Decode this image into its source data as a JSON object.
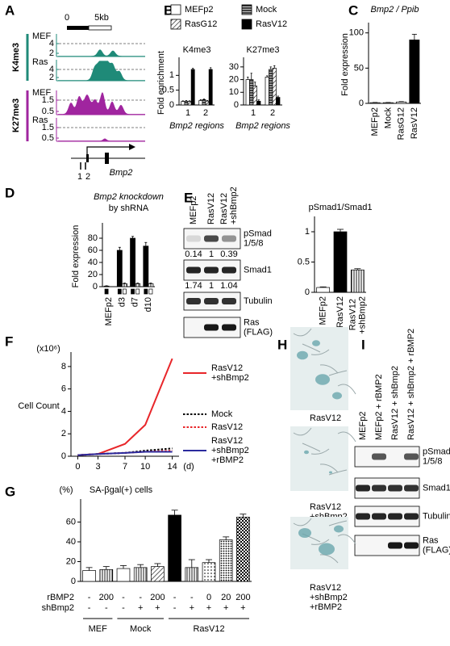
{
  "panels": [
    "A",
    "B",
    "C",
    "D",
    "E",
    "F",
    "G",
    "H",
    "I"
  ],
  "panel_a": {
    "scale": [
      "0",
      "5kb"
    ],
    "marks": [
      "K4me3",
      "K27me3"
    ],
    "tracks": [
      {
        "name": "MEF",
        "ticks": [
          4,
          2
        ]
      },
      {
        "name": "Ras",
        "ticks": [
          4,
          2
        ]
      },
      {
        "name": "MEF",
        "ticks": [
          1.5,
          0.5
        ]
      },
      {
        "name": "Ras",
        "ticks": [
          1.5,
          0.5
        ]
      }
    ],
    "regions": [
      "1",
      "2"
    ],
    "gene": "Bmp2"
  },
  "chart_data": [
    {
      "type": "bar",
      "title": "K4me3",
      "y_label": "Fold enrichment",
      "x_label": "Bmp2 regions",
      "categories": [
        "1",
        "2"
      ],
      "series": [
        {
          "name": "MEFp2",
          "color": "#ffffff",
          "pattern": "plain",
          "values": [
            0.12,
            0.15
          ],
          "errors": [
            0.02,
            0.03
          ]
        },
        {
          "name": "Mock",
          "color": "#555555",
          "pattern": "hstripe",
          "values": [
            0.13,
            0.18
          ],
          "errors": [
            0.02,
            0.02
          ]
        },
        {
          "name": "RasG12",
          "color": "#ffffff",
          "pattern": "hatch",
          "values": [
            0.12,
            0.13
          ],
          "errors": [
            0.02,
            0.02
          ]
        },
        {
          "name": "RasV12",
          "color": "#000000",
          "pattern": "plain",
          "values": [
            1.2,
            1.2
          ],
          "errors": [
            0.04,
            0.06
          ]
        }
      ],
      "ylim": [
        0,
        1.5
      ],
      "yticks": [
        0,
        0.5,
        1
      ]
    },
    {
      "type": "bar",
      "title": "K27me3",
      "x_label": "Bmp2 regions",
      "categories": [
        "1",
        "2"
      ],
      "series": [
        {
          "color": "#ffffff",
          "pattern": "plain",
          "values": [
            20,
            22
          ],
          "errors": [
            2,
            1
          ]
        },
        {
          "color": "#555555",
          "pattern": "hstripe",
          "values": [
            20,
            28
          ],
          "errors": [
            5,
            2
          ]
        },
        {
          "color": "#ffffff",
          "pattern": "hatch",
          "values": [
            15,
            29
          ],
          "errors": [
            3,
            2
          ]
        },
        {
          "color": "#000000",
          "pattern": "plain",
          "values": [
            3,
            6
          ],
          "errors": [
            1,
            1
          ]
        }
      ],
      "ylim": [
        0,
        35
      ],
      "yticks": [
        0,
        10,
        20,
        30
      ]
    },
    {
      "type": "bar",
      "title": "Bmp2 / Ppib",
      "y_label": "Fold expression",
      "categories": [
        "MEFp2",
        "Mock",
        "RasG12",
        "RasV12"
      ],
      "series": [
        {
          "colors": [
            "#ffffff",
            "#ffffff",
            "#ffffff",
            "#000000"
          ],
          "patterns": [
            "plain",
            "plain",
            "plain",
            "plain"
          ],
          "values": [
            1,
            1,
            2,
            90
          ],
          "errors": [
            0.3,
            0.3,
            0.5,
            8
          ]
        }
      ],
      "ylim": [
        0,
        110
      ],
      "yticks": [
        0,
        50,
        100
      ]
    },
    {
      "type": "bar",
      "title": "Bmp2 knockdown",
      "subtitle": "by shRNA",
      "y_label": "Fold expression",
      "categories": [
        "MEFp2",
        "d3",
        "d7",
        "d10"
      ],
      "series": [
        {
          "color": "#000000",
          "pattern": "plain",
          "values": [
            1,
            60,
            80,
            67
          ],
          "errors": [
            0.5,
            5,
            3,
            6
          ]
        },
        {
          "color": "#ffffff",
          "pattern": "vstripe",
          "values": [
            null,
            5,
            5,
            5
          ],
          "errors": [
            null,
            1,
            1,
            1
          ]
        }
      ],
      "ylim": [
        0,
        100
      ],
      "yticks": [
        0,
        20,
        40,
        60,
        80
      ]
    },
    {
      "type": "bar",
      "title": "pSmad1/Smad1",
      "categories": [
        "MEFp2",
        "RasV12",
        "RasV12 +shBmp2"
      ],
      "series": [
        {
          "colors": [
            "#ffffff",
            "#000000",
            "#ffffff"
          ],
          "patterns": [
            "plain",
            "plain",
            "vstripe"
          ],
          "values": [
            0.08,
            1,
            0.37
          ],
          "errors": [
            0.01,
            0.04,
            0.02
          ]
        }
      ],
      "ylim": [
        0,
        1.2
      ],
      "yticks": [
        0,
        0.5,
        1
      ]
    },
    {
      "type": "line",
      "y_label": "Cell Count",
      "unit": "(x10⁶)",
      "x_label": "(d)",
      "x": [
        0,
        3,
        7,
        10,
        14
      ],
      "series": [
        {
          "name": "RasV12 +shBmp2",
          "color": "#e8262a",
          "dash": "solid",
          "values": [
            0.1,
            0.2,
            1.1,
            2.8,
            8.7
          ]
        },
        {
          "name": "Mock",
          "color": "#000000",
          "dash": "dotted",
          "values": [
            0.1,
            0.2,
            0.3,
            0.5,
            0.7
          ]
        },
        {
          "name": "RasV12",
          "color": "#e8262a",
          "dash": "dotted",
          "values": [
            0.1,
            0.2,
            0.3,
            0.4,
            0.5
          ]
        },
        {
          "name": "RasV12 +shBmp2 +rBMP2",
          "color": "#2b2b9e",
          "dash": "solid",
          "values": [
            0.1,
            0.2,
            0.3,
            0.4,
            0.4
          ]
        }
      ],
      "xlim": [
        -1,
        15
      ],
      "xticks": [
        0,
        3,
        7,
        10,
        14
      ],
      "ylim": [
        0,
        9
      ],
      "yticks": [
        0,
        2,
        4,
        6,
        8
      ]
    },
    {
      "type": "bar",
      "title": "SA-βgal(+) cells",
      "unit": "(%)",
      "series": [
        {
          "colors": [
            "#ffffff",
            "#ffffff",
            "#ffffff",
            "#ffffff",
            "#ffffff",
            "#000000",
            "#ffffff",
            "#ffffff",
            "#ffffff",
            "#ffffff"
          ],
          "patterns": [
            "plain",
            "vstripe",
            "plain",
            "vstripe",
            "hatch",
            "plain",
            "vstripe",
            "dots",
            "dense",
            "checker"
          ],
          "values": [
            11,
            12,
            13,
            14,
            15,
            67,
            14,
            19,
            42,
            65
          ],
          "errors": [
            3,
            3,
            3,
            3,
            3,
            5,
            8,
            3,
            3,
            3
          ]
        }
      ],
      "rows": [
        {
          "name": "rBMP2",
          "cells": [
            "-",
            "200",
            "-",
            "-",
            "200",
            "-",
            "-",
            "0",
            "20",
            "200"
          ]
        },
        {
          "name": "shBmp2",
          "cells": [
            "-",
            "-",
            "-",
            "+",
            "+",
            "-",
            "+",
            "+",
            "+",
            "+"
          ]
        }
      ],
      "groups": [
        "MEF",
        "Mock",
        "RasV12"
      ],
      "ylim": [
        0,
        80
      ],
      "yticks": [
        0,
        20,
        40,
        60
      ]
    }
  ],
  "panel_e": {
    "lanes": [
      "MEFp2",
      "RasV12",
      "RasV12 +shBmp2"
    ],
    "rows": [
      "pSmad 1/5/8",
      "Smad1",
      "Tubulin",
      "Ras (FLAG)"
    ],
    "quant": [
      [
        "0.14",
        "1",
        "0.39"
      ],
      [
        "1.74",
        "1",
        "1.04"
      ]
    ]
  },
  "panel_h": {
    "labels": [
      "RasV12",
      "RasV12 +shBmp2",
      "RasV12 +shBmp2 +rBMP2"
    ]
  },
  "panel_i": {
    "lanes": [
      "MEFp2",
      "MEFp2 + rBMP2",
      "RasV12 + shBmp2",
      "RasV12 + shBmp2 + rBMP2"
    ],
    "rows": [
      "pSmad 1/5/8",
      "Smad1",
      "Tubulin",
      "Ras (FLAG)"
    ]
  }
}
